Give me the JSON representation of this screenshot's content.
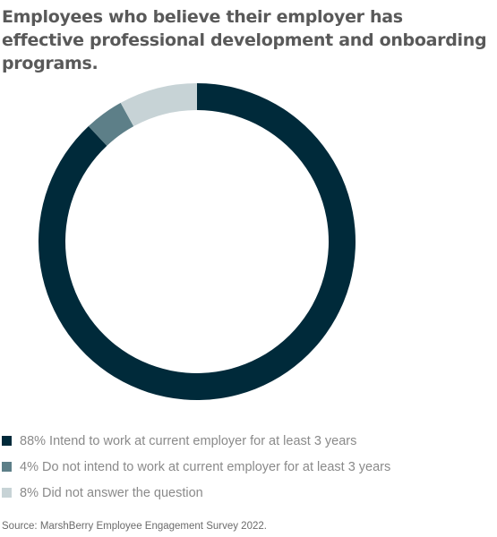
{
  "title": "Employees who believe their employer has effective professional development and onboarding programs.",
  "source": "Source: MarshBerry Employee Engagement Survey 2022.",
  "colors": {
    "intend": "#002a3a",
    "do_not_intend": "#5d7f88",
    "no_answer": "#c7d3d6"
  },
  "legend": [
    {
      "label": "88% Intend to work at current employer for at least 3 years",
      "color": "#002a3a"
    },
    {
      "label": "4% Do not intend to work at current employer for at least 3 years",
      "color": "#5d7f88"
    },
    {
      "label": "8% Did not answer the question",
      "color": "#c7d3d6"
    }
  ],
  "chart_data": {
    "type": "pie",
    "style": "donut",
    "title": "Employees who believe their employer has effective professional development and onboarding programs.",
    "series": [
      {
        "name": "Intend to work at current employer for at least 3 years",
        "value": 88,
        "color": "#002a3a"
      },
      {
        "name": "Do not intend to work at current employer for at least 3 years",
        "value": 4,
        "color": "#5d7f88"
      },
      {
        "name": "Did not answer the question",
        "value": 8,
        "color": "#c7d3d6"
      }
    ],
    "legend_position": "bottom-left",
    "data_labels": false
  }
}
